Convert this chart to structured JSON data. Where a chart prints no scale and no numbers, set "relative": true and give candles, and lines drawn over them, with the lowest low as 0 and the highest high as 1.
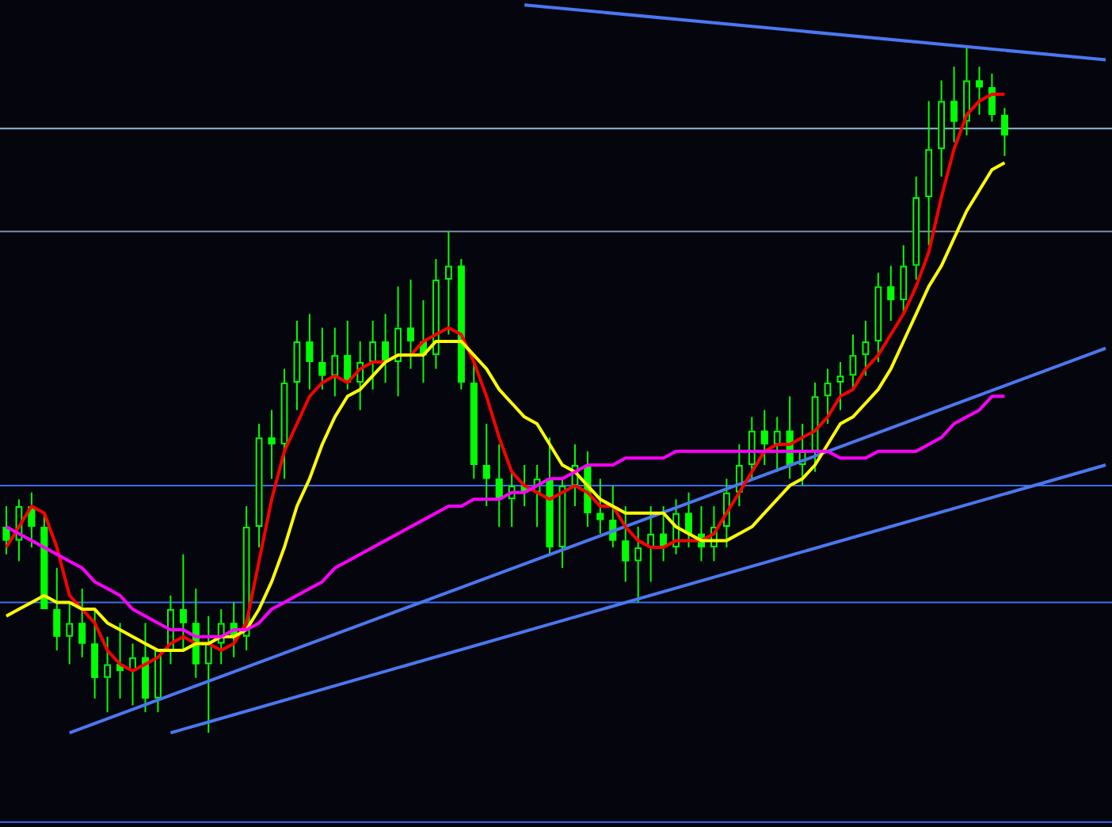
{
  "chart_data": {
    "type": "candlestick",
    "relative": true,
    "tick_labels": false,
    "color": "#00ff00",
    "colors": [
      "#00ff00",
      "#05050d",
      "#00ff00",
      "#00ff00",
      "#00ff00",
      "#05050d",
      "#00ff00",
      "#00ff00",
      "#05050d",
      "#00ff00",
      "#05050d",
      "#00ff00",
      "#05050d",
      "#05050d",
      "#00ff00",
      "#00ff00",
      "#05050d",
      "#05050d",
      "#00ff00",
      "#05050d",
      "#05050d",
      "#00ff00",
      "#05050d",
      "#05050d",
      "#00ff00",
      "#00ff00",
      "#05050d",
      "#00ff00",
      "#05050d",
      "#05050d",
      "#00ff00",
      "#05050d",
      "#00ff00",
      "#00ff00",
      "#05050d",
      "#05050d",
      "#00ff00",
      "#00ff00",
      "#00ff00",
      "#00ff00",
      "#05050d",
      "#00ff00",
      "#05050d",
      "#00ff00",
      "#05050d",
      "#05050d",
      "#00ff00",
      "#00ff00",
      "#00ff00",
      "#00ff00",
      "#05050d",
      "#05050d",
      "#00ff00",
      "#05050d",
      "#00ff00",
      "#00ff00",
      "#05050d",
      "#05050d",
      "#05050d",
      "#05050d",
      "#00ff00",
      "#05050d",
      "#00ff00",
      "#05050d",
      "#05050d",
      "#05050d",
      "#05050d",
      "#05050d",
      "#05050d",
      "#05050d",
      "#00ff00",
      "#05050d",
      "#05050d",
      "#05050d",
      "#05050d",
      "#00ff00",
      "#05050d",
      "#00ff00",
      "#00ff00",
      "#00ff00",
      null,
      null,
      null,
      null,
      null,
      null,
      null,
      null
    ],
    "categories": [
      null,
      null,
      null,
      null,
      null,
      null,
      null,
      null,
      null,
      null,
      null,
      null,
      null,
      null,
      null,
      null,
      null,
      null,
      null,
      null,
      null,
      null,
      null,
      null,
      null,
      null,
      null,
      null,
      null,
      null,
      null,
      null,
      null,
      null,
      null,
      null,
      null,
      null,
      null,
      null,
      null,
      null,
      null,
      null,
      null,
      null,
      null,
      null,
      null,
      null,
      null,
      null,
      null,
      null,
      null,
      null,
      null,
      null,
      null,
      null,
      null,
      null,
      null,
      null,
      null,
      null,
      null,
      null,
      null,
      null,
      null,
      null,
      null,
      null,
      null,
      null,
      null,
      null,
      null,
      null,
      null,
      null,
      null,
      null,
      null,
      null,
      null,
      null
    ],
    "ohlc": [
      [
        0.3,
        0.33,
        0.26,
        0.28
      ],
      [
        0.28,
        0.34,
        0.25,
        0.33
      ],
      [
        0.33,
        0.35,
        0.27,
        0.3
      ],
      [
        0.3,
        0.32,
        0.18,
        0.18
      ],
      [
        0.18,
        0.24,
        0.12,
        0.14
      ],
      [
        0.14,
        0.19,
        0.1,
        0.16
      ],
      [
        0.16,
        0.21,
        0.11,
        0.13
      ],
      [
        0.13,
        0.18,
        0.05,
        0.08
      ],
      [
        0.08,
        0.14,
        0.03,
        0.1
      ],
      [
        0.1,
        0.16,
        0.05,
        0.09
      ],
      [
        0.09,
        0.13,
        0.04,
        0.11
      ],
      [
        0.11,
        0.16,
        0.03,
        0.05
      ],
      [
        0.05,
        0.12,
        0.03,
        0.12
      ],
      [
        0.12,
        0.2,
        0.1,
        0.18
      ],
      [
        0.18,
        0.26,
        0.12,
        0.16
      ],
      [
        0.16,
        0.21,
        0.08,
        0.1
      ],
      [
        0.1,
        0.17,
        0,
        0.13
      ],
      [
        0.13,
        0.18,
        0.1,
        0.16
      ],
      [
        0.16,
        0.19,
        0.11,
        0.14
      ],
      [
        0.14,
        0.33,
        0.12,
        0.3
      ],
      [
        0.3,
        0.45,
        0.27,
        0.43
      ],
      [
        0.43,
        0.47,
        0.37,
        0.42
      ],
      [
        0.42,
        0.53,
        0.37,
        0.51
      ],
      [
        0.51,
        0.6,
        0.47,
        0.57
      ],
      [
        0.57,
        0.61,
        0.5,
        0.54
      ],
      [
        0.54,
        0.59,
        0.5,
        0.52
      ],
      [
        0.52,
        0.59,
        0.49,
        0.55
      ],
      [
        0.55,
        0.6,
        0.5,
        0.51
      ],
      [
        0.51,
        0.57,
        0.47,
        0.54
      ],
      [
        0.54,
        0.6,
        0.5,
        0.57
      ],
      [
        0.57,
        0.61,
        0.51,
        0.54
      ],
      [
        0.54,
        0.65,
        0.49,
        0.59
      ],
      [
        0.59,
        0.66,
        0.53,
        0.57
      ],
      [
        0.57,
        0.63,
        0.51,
        0.55
      ],
      [
        0.55,
        0.69,
        0.53,
        0.66
      ],
      [
        0.66,
        0.73,
        0.58,
        0.68
      ],
      [
        0.68,
        0.69,
        0.5,
        0.51
      ],
      [
        0.51,
        0.54,
        0.37,
        0.39
      ],
      [
        0.39,
        0.45,
        0.33,
        0.37
      ],
      [
        0.37,
        0.42,
        0.3,
        0.34
      ],
      [
        0.34,
        0.38,
        0.3,
        0.36
      ],
      [
        0.36,
        0.39,
        0.33,
        0.35
      ],
      [
        0.35,
        0.39,
        0.3,
        0.37
      ],
      [
        0.37,
        0.43,
        0.26,
        0.27
      ],
      [
        0.27,
        0.37,
        0.24,
        0.36
      ],
      [
        0.36,
        0.42,
        0.33,
        0.39
      ],
      [
        0.39,
        0.41,
        0.3,
        0.32
      ],
      [
        0.32,
        0.37,
        0.29,
        0.31
      ],
      [
        0.31,
        0.36,
        0.27,
        0.28
      ],
      [
        0.28,
        0.33,
        0.22,
        0.25
      ],
      [
        0.25,
        0.3,
        0.19,
        0.27
      ],
      [
        0.27,
        0.33,
        0.22,
        0.29
      ],
      [
        0.29,
        0.33,
        0.25,
        0.27
      ],
      [
        0.27,
        0.34,
        0.26,
        0.32
      ],
      [
        0.32,
        0.35,
        0.27,
        0.29
      ],
      [
        0.29,
        0.33,
        0.25,
        0.27
      ],
      [
        0.27,
        0.33,
        0.25,
        0.3
      ],
      [
        0.3,
        0.37,
        0.27,
        0.35
      ],
      [
        0.35,
        0.42,
        0.33,
        0.39
      ],
      [
        0.39,
        0.46,
        0.37,
        0.44
      ],
      [
        0.44,
        0.47,
        0.39,
        0.42
      ],
      [
        0.42,
        0.46,
        0.38,
        0.44
      ],
      [
        0.44,
        0.49,
        0.37,
        0.39
      ],
      [
        0.39,
        0.45,
        0.36,
        0.41
      ],
      [
        0.41,
        0.51,
        0.38,
        0.49
      ],
      [
        0.49,
        0.53,
        0.45,
        0.51
      ],
      [
        0.51,
        0.54,
        0.47,
        0.52
      ],
      [
        0.52,
        0.58,
        0.5,
        0.55
      ],
      [
        0.55,
        0.6,
        0.52,
        0.57
      ],
      [
        0.57,
        0.67,
        0.54,
        0.65
      ],
      [
        0.65,
        0.68,
        0.6,
        0.63
      ],
      [
        0.63,
        0.71,
        0.61,
        0.68
      ],
      [
        0.68,
        0.81,
        0.66,
        0.78
      ],
      [
        0.78,
        0.92,
        0.71,
        0.85
      ],
      [
        0.85,
        0.95,
        0.81,
        0.92
      ],
      [
        0.92,
        0.97,
        0.86,
        0.89
      ],
      [
        0.89,
        1.0,
        0.87,
        0.95
      ],
      [
        0.95,
        0.97,
        0.9,
        0.94
      ],
      [
        0.94,
        0.96,
        0.89,
        0.9
      ],
      [
        0.9,
        0.91,
        0.84,
        0.87
      ],
      null,
      null,
      null,
      null,
      null,
      null,
      null,
      null
    ],
    "series": [
      {
        "type": "line",
        "color": "#ff00ff",
        "values": [
          0.3,
          0.29,
          0.28,
          0.27,
          0.26,
          0.25,
          0.24,
          0.22,
          0.21,
          0.2,
          0.18,
          0.17,
          0.16,
          0.15,
          0.15,
          0.14,
          0.14,
          0.14,
          0.15,
          0.15,
          0.16,
          0.18,
          0.19,
          0.2,
          0.21,
          0.22,
          0.24,
          0.25,
          0.26,
          0.27,
          0.28,
          0.29,
          0.3,
          0.31,
          0.32,
          0.33,
          0.33,
          0.34,
          0.34,
          0.34,
          0.35,
          0.35,
          0.36,
          0.37,
          0.37,
          0.38,
          0.39,
          0.39,
          0.39,
          0.4,
          0.4,
          0.4,
          0.4,
          0.41,
          0.41,
          0.41,
          0.41,
          0.41,
          0.41,
          0.41,
          0.41,
          0.41,
          0.41,
          0.41,
          0.41,
          0.41,
          0.4,
          0.4,
          0.4,
          0.41,
          0.41,
          0.41,
          0.41,
          0.42,
          0.43,
          0.45,
          0.46,
          0.47,
          0.49,
          0.49,
          null,
          null,
          null,
          null,
          null,
          null,
          null,
          null
        ]
      },
      {
        "type": "line",
        "color": "#ffff00",
        "values": [
          0.17,
          0.18,
          0.19,
          0.2,
          0.19,
          0.19,
          0.18,
          0.18,
          0.16,
          0.15,
          0.14,
          0.13,
          0.12,
          0.12,
          0.12,
          0.13,
          0.13,
          0.14,
          0.14,
          0.15,
          0.18,
          0.22,
          0.27,
          0.33,
          0.37,
          0.42,
          0.46,
          0.49,
          0.5,
          0.52,
          0.54,
          0.55,
          0.55,
          0.55,
          0.57,
          0.57,
          0.57,
          0.55,
          0.53,
          0.5,
          0.48,
          0.46,
          0.45,
          0.42,
          0.39,
          0.38,
          0.36,
          0.34,
          0.33,
          0.32,
          0.32,
          0.32,
          0.32,
          0.3,
          0.29,
          0.28,
          0.28,
          0.28,
          0.29,
          0.3,
          0.32,
          0.34,
          0.36,
          0.37,
          0.39,
          0.42,
          0.45,
          0.46,
          0.48,
          0.5,
          0.53,
          0.57,
          0.61,
          0.65,
          0.68,
          0.72,
          0.76,
          0.79,
          0.82,
          0.83,
          null,
          null,
          null,
          null,
          null,
          null,
          null,
          null
        ]
      },
      {
        "type": "line",
        "color": "#ff0000",
        "values": [
          0.27,
          0.3,
          0.33,
          0.32,
          0.27,
          0.2,
          0.18,
          0.16,
          0.12,
          0.1,
          0.09,
          0.1,
          0.11,
          0.13,
          0.14,
          0.13,
          0.13,
          0.12,
          0.13,
          0.16,
          0.25,
          0.34,
          0.41,
          0.45,
          0.49,
          0.51,
          0.52,
          0.51,
          0.53,
          0.54,
          0.54,
          0.55,
          0.55,
          0.57,
          0.58,
          0.59,
          0.58,
          0.54,
          0.49,
          0.43,
          0.38,
          0.36,
          0.35,
          0.34,
          0.35,
          0.36,
          0.35,
          0.33,
          0.33,
          0.3,
          0.28,
          0.27,
          0.27,
          0.28,
          0.28,
          0.28,
          0.29,
          0.32,
          0.35,
          0.38,
          0.41,
          0.42,
          0.42,
          0.43,
          0.44,
          0.46,
          0.49,
          0.5,
          0.53,
          0.55,
          0.58,
          0.61,
          0.65,
          0.7,
          0.78,
          0.85,
          0.9,
          0.92,
          0.93,
          0.93,
          null,
          null,
          null,
          null,
          null,
          null,
          null,
          null
        ]
      },
      {
        "type": "line",
        "color": "#4a78f0",
        "values": [
          null,
          null,
          null,
          null,
          null,
          0,
          null,
          null,
          null,
          null,
          null,
          null,
          null,
          null,
          null,
          null,
          null,
          null,
          null,
          null,
          null,
          null,
          null,
          null,
          null,
          null,
          null,
          null,
          null,
          null,
          null,
          null,
          null,
          null,
          null,
          null,
          null,
          null,
          null,
          null,
          null,
          null,
          null,
          null,
          null,
          null,
          null,
          null,
          null,
          null,
          null,
          null,
          null,
          null,
          null,
          null,
          null,
          null,
          null,
          null,
          null,
          null,
          null,
          null,
          null,
          null,
          null,
          null,
          null,
          null,
          null,
          null,
          null,
          null,
          null,
          null,
          null,
          null,
          null,
          null,
          null,
          null,
          null,
          null,
          null,
          null,
          null,
          0.56
        ]
      },
      {
        "type": "line",
        "color": "#4a78f0",
        "values": [
          null,
          null,
          null,
          null,
          null,
          null,
          null,
          null,
          null,
          null,
          null,
          null,
          null,
          0,
          null,
          null,
          null,
          null,
          null,
          null,
          null,
          null,
          null,
          null,
          null,
          null,
          null,
          null,
          null,
          null,
          null,
          null,
          null,
          null,
          null,
          null,
          null,
          null,
          null,
          null,
          null,
          null,
          null,
          null,
          null,
          null,
          null,
          null,
          null,
          null,
          null,
          null,
          null,
          null,
          null,
          null,
          null,
          null,
          null,
          null,
          null,
          null,
          null,
          null,
          null,
          null,
          null,
          null,
          null,
          null,
          null,
          null,
          null,
          null,
          null,
          null,
          null,
          null,
          null,
          null,
          null,
          null,
          null,
          null,
          null,
          null,
          null,
          0.39
        ]
      },
      {
        "type": "line",
        "color": "#4a78f0",
        "values": [
          null,
          null,
          null,
          null,
          null,
          null,
          null,
          null,
          null,
          null,
          null,
          null,
          null,
          null,
          null,
          null,
          null,
          null,
          null,
          null,
          null,
          null,
          null,
          null,
          null,
          null,
          null,
          null,
          null,
          null,
          null,
          null,
          null,
          null,
          null,
          null,
          null,
          null,
          null,
          null,
          null,
          1.06,
          null,
          null,
          null,
          null,
          null,
          null,
          null,
          null,
          null,
          null,
          null,
          null,
          null,
          null,
          null,
          null,
          null,
          null,
          null,
          null,
          null,
          null,
          null,
          null,
          null,
          null,
          null,
          null,
          null,
          null,
          null,
          null,
          null,
          null,
          null,
          null,
          null,
          null,
          null,
          null,
          null,
          null,
          null,
          null,
          null,
          0.98
        ]
      }
    ],
    "ref_lines": [
      {
        "axis": "y",
        "value": 0.88,
        "color": "#8fb8d8"
      },
      {
        "axis": "y",
        "value": 0.73,
        "color": "#7f8ca8"
      },
      {
        "axis": "y",
        "value": 0.36,
        "color": "#3c6ef0"
      },
      {
        "axis": "y",
        "value": 0.19,
        "color": "#3c6ef0"
      },
      {
        "axis": "y",
        "value": -0.13,
        "color": "#3c6ef0"
      }
    ]
  }
}
